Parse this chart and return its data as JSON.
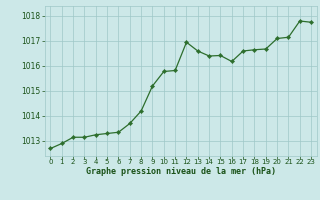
{
  "x": [
    0,
    1,
    2,
    3,
    4,
    5,
    6,
    7,
    8,
    9,
    10,
    11,
    12,
    13,
    14,
    15,
    16,
    17,
    18,
    19,
    20,
    21,
    22,
    23
  ],
  "y": [
    1012.7,
    1012.9,
    1013.15,
    1013.15,
    1013.25,
    1013.3,
    1013.35,
    1013.7,
    1014.2,
    1015.2,
    1015.78,
    1015.82,
    1016.95,
    1016.6,
    1016.4,
    1016.42,
    1016.18,
    1016.6,
    1016.65,
    1016.68,
    1017.1,
    1017.15,
    1017.8,
    1017.75
  ],
  "title": "Graphe pression niveau de la mer (hPa)",
  "ylim": [
    1012.4,
    1018.4
  ],
  "yticks": [
    1013,
    1014,
    1015,
    1016,
    1017,
    1018
  ],
  "xticks": [
    0,
    1,
    2,
    3,
    4,
    5,
    6,
    7,
    8,
    9,
    10,
    11,
    12,
    13,
    14,
    15,
    16,
    17,
    18,
    19,
    20,
    21,
    22,
    23
  ],
  "xticklabels": [
    "0",
    "1",
    "2",
    "3",
    "4",
    "5",
    "6",
    "7",
    "8",
    "9",
    "10",
    "11",
    "12",
    "13",
    "14",
    "15",
    "16",
    "17",
    "18",
    "19",
    "20",
    "21",
    "22",
    "23"
  ],
  "line_color": "#2d6e2d",
  "marker_color": "#2d6e2d",
  "bg_color": "#cce8e8",
  "grid_color": "#9fc8c8",
  "title_color": "#1a5218",
  "tick_label_color": "#1a5218"
}
